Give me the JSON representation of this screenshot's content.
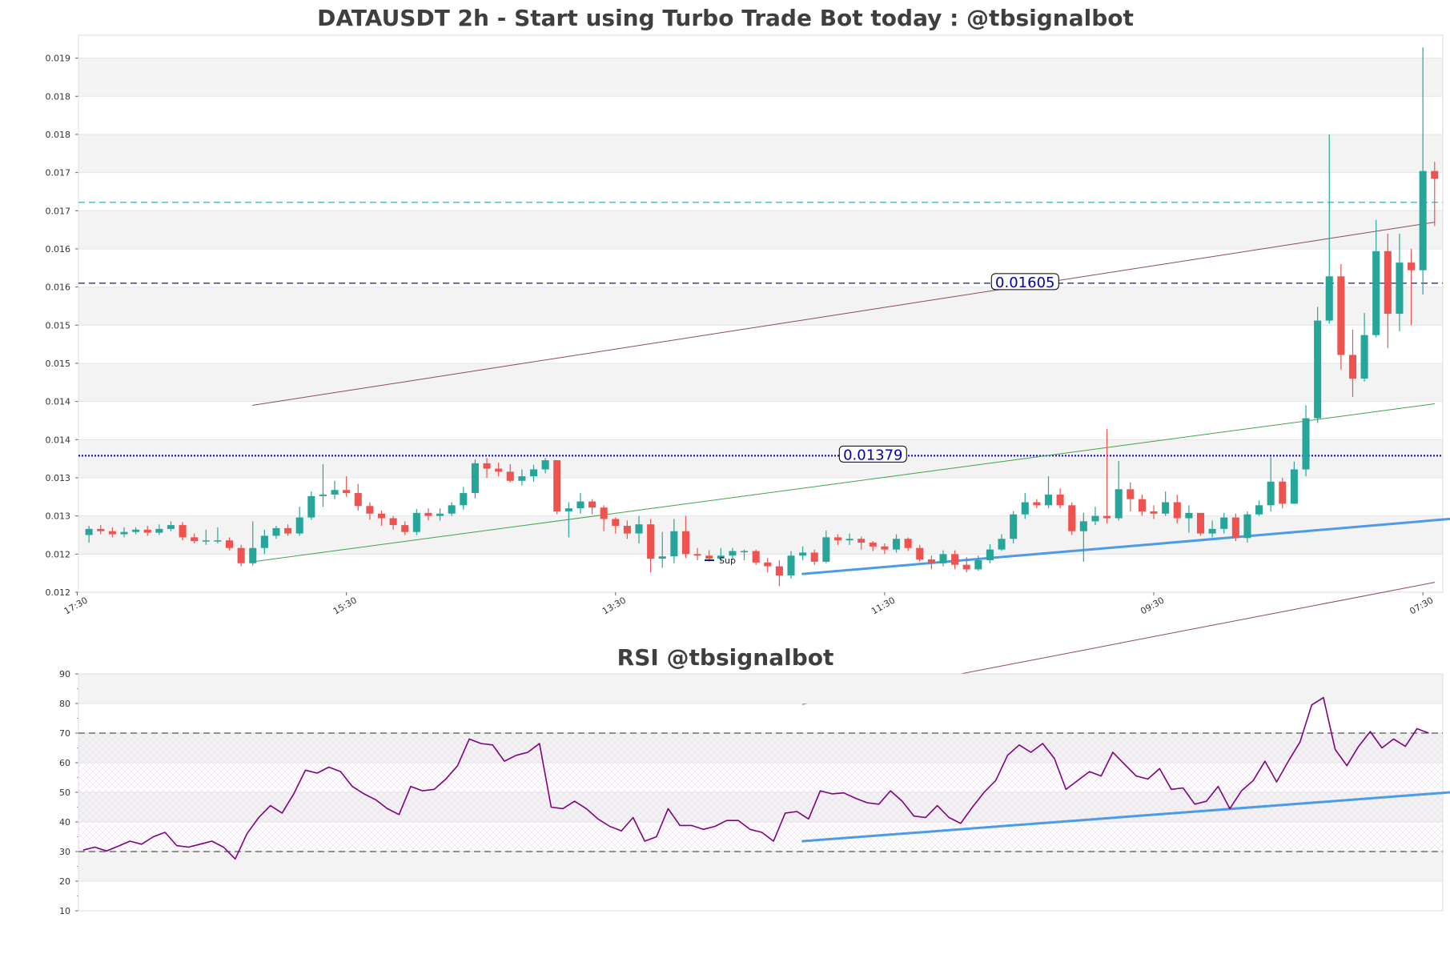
{
  "chart_data": [
    {
      "type": "candlestick",
      "title": "DATAUSDT 2h - Start using Turbo Trade Bot today : @tbsignalbot",
      "xlabel": "",
      "ylabel": "",
      "ylim": [
        0.012,
        0.0193
      ],
      "yticks": [
        {
          "value": 0.012,
          "label": "0.012"
        },
        {
          "value": 0.0125,
          "label": "0.012"
        },
        {
          "value": 0.013,
          "label": "0.013"
        },
        {
          "value": 0.0135,
          "label": "0.013"
        },
        {
          "value": 0.014,
          "label": "0.014"
        },
        {
          "value": 0.0145,
          "label": "0.014"
        },
        {
          "value": 0.015,
          "label": "0.015"
        },
        {
          "value": 0.0155,
          "label": "0.015"
        },
        {
          "value": 0.016,
          "label": "0.016"
        },
        {
          "value": 0.0165,
          "label": "0.016"
        },
        {
          "value": 0.017,
          "label": "0.017"
        },
        {
          "value": 0.0175,
          "label": "0.017"
        },
        {
          "value": 0.018,
          "label": "0.018"
        },
        {
          "value": 0.0185,
          "label": "0.018"
        },
        {
          "value": 0.019,
          "label": "0.019"
        }
      ],
      "xticks": [
        {
          "index": -1,
          "label": "17:30"
        },
        {
          "index": 22,
          "label": "15:30"
        },
        {
          "index": 45,
          "label": "13:30"
        },
        {
          "index": 68,
          "label": "11:30"
        },
        {
          "index": 91,
          "label": "09:30"
        },
        {
          "index": 114,
          "label": "07:30"
        }
      ],
      "candles": [
        [
          0.01275,
          0.01283,
          0.01287,
          0.01265
        ],
        [
          0.01283,
          0.0128,
          0.01288,
          0.01276
        ],
        [
          0.0128,
          0.01276,
          0.01285,
          0.01272
        ],
        [
          0.01276,
          0.01279,
          0.01285,
          0.01272
        ],
        [
          0.01279,
          0.01282,
          0.01285,
          0.01276
        ],
        [
          0.01282,
          0.01278,
          0.01287,
          0.01274
        ],
        [
          0.01278,
          0.01283,
          0.01289,
          0.01275
        ],
        [
          0.01283,
          0.01288,
          0.01293,
          0.0128
        ],
        [
          0.01288,
          0.01272,
          0.01292,
          0.01268
        ],
        [
          0.01272,
          0.01267,
          0.01277,
          0.01264
        ],
        [
          0.01267,
          0.01268,
          0.01282,
          0.01262
        ],
        [
          0.01268,
          0.01268,
          0.01285,
          0.01264
        ],
        [
          0.01268,
          0.01258,
          0.01272,
          0.01255
        ],
        [
          0.01258,
          0.01238,
          0.01262,
          0.01234
        ],
        [
          0.01238,
          0.01258,
          0.01293,
          0.01235
        ],
        [
          0.01258,
          0.01274,
          0.01282,
          0.0125
        ],
        [
          0.01274,
          0.01284,
          0.01287,
          0.0127
        ],
        [
          0.01284,
          0.01277,
          0.01289,
          0.01274
        ],
        [
          0.01277,
          0.01298,
          0.01312,
          0.01274
        ],
        [
          0.01298,
          0.01326,
          0.01332,
          0.01295
        ],
        [
          0.01326,
          0.01328,
          0.01368,
          0.01312
        ],
        [
          0.01328,
          0.01334,
          0.01346,
          0.01322
        ],
        [
          0.01334,
          0.0133,
          0.01352,
          0.01325
        ],
        [
          0.0133,
          0.01313,
          0.01342,
          0.01307
        ],
        [
          0.01313,
          0.01303,
          0.01318,
          0.01295
        ],
        [
          0.01303,
          0.01297,
          0.01307,
          0.01287
        ],
        [
          0.01297,
          0.01288,
          0.013,
          0.01282
        ],
        [
          0.01288,
          0.01279,
          0.01293,
          0.01275
        ],
        [
          0.01279,
          0.01304,
          0.01309,
          0.01275
        ],
        [
          0.01304,
          0.013,
          0.0131,
          0.01294
        ],
        [
          0.013,
          0.01303,
          0.0131,
          0.01294
        ],
        [
          0.01303,
          0.01314,
          0.01318,
          0.013
        ],
        [
          0.01314,
          0.0133,
          0.01338,
          0.01308
        ],
        [
          0.0133,
          0.01369,
          0.01374,
          0.01323
        ],
        [
          0.01369,
          0.01362,
          0.01376,
          0.0135
        ],
        [
          0.01362,
          0.01358,
          0.0137,
          0.01352
        ],
        [
          0.01358,
          0.01346,
          0.01368,
          0.01344
        ],
        [
          0.01346,
          0.01352,
          0.01361,
          0.0134
        ],
        [
          0.01352,
          0.01361,
          0.01367,
          0.01345
        ],
        [
          0.01361,
          0.01373,
          0.01376,
          0.01356
        ],
        [
          0.01373,
          0.01306,
          0.01372,
          0.01302
        ],
        [
          0.01306,
          0.0131,
          0.01318,
          0.01272
        ],
        [
          0.0131,
          0.01319,
          0.0133,
          0.01303
        ],
        [
          0.01319,
          0.01311,
          0.01322,
          0.01302
        ],
        [
          0.01311,
          0.01296,
          0.01314,
          0.0128
        ],
        [
          0.01296,
          0.01287,
          0.01298,
          0.01277
        ],
        [
          0.01287,
          0.01277,
          0.01294,
          0.0127
        ],
        [
          0.01277,
          0.01289,
          0.013,
          0.01264
        ],
        [
          0.01289,
          0.01244,
          0.01296,
          0.01226
        ],
        [
          0.01244,
          0.01247,
          0.01279,
          0.01232
        ],
        [
          0.01247,
          0.0128,
          0.01296,
          0.01238
        ],
        [
          0.0128,
          0.0125,
          0.013,
          0.01245
        ],
        [
          0.0125,
          0.01248,
          0.01258,
          0.01242
        ],
        [
          0.01248,
          0.01244,
          0.01255,
          0.0124
        ],
        [
          0.01244,
          0.01248,
          0.01258,
          0.0124
        ],
        [
          0.01248,
          0.01254,
          0.01258,
          0.01242
        ],
        [
          0.01254,
          0.01254,
          0.01256,
          0.01242
        ],
        [
          0.01254,
          0.01239,
          0.01256,
          0.01236
        ],
        [
          0.01239,
          0.01234,
          0.01245,
          0.01226
        ],
        [
          0.01234,
          0.01222,
          0.01242,
          0.01208
        ],
        [
          0.01222,
          0.01248,
          0.01254,
          0.01218
        ],
        [
          0.01248,
          0.01252,
          0.0126,
          0.01242
        ],
        [
          0.01252,
          0.0124,
          0.01256,
          0.01236
        ],
        [
          0.0124,
          0.01272,
          0.01281,
          0.01238
        ],
        [
          0.01272,
          0.01268,
          0.01276,
          0.01262
        ],
        [
          0.01268,
          0.0127,
          0.01277,
          0.01262
        ],
        [
          0.0127,
          0.01265,
          0.01273,
          0.01256
        ],
        [
          0.01265,
          0.0126,
          0.01267,
          0.01254
        ],
        [
          0.0126,
          0.01256,
          0.01264,
          0.0125
        ],
        [
          0.01256,
          0.0127,
          0.01276,
          0.01252
        ],
        [
          0.0127,
          0.01258,
          0.01272,
          0.01254
        ],
        [
          0.01258,
          0.01243,
          0.01262,
          0.0124
        ],
        [
          0.01243,
          0.01238,
          0.01248,
          0.0123
        ],
        [
          0.01238,
          0.0125,
          0.01255,
          0.01234
        ],
        [
          0.0125,
          0.01236,
          0.01255,
          0.0123
        ],
        [
          0.01236,
          0.0123,
          0.01246,
          0.01226
        ],
        [
          0.0123,
          0.01242,
          0.01248,
          0.01228
        ],
        [
          0.01242,
          0.01256,
          0.01263,
          0.01238
        ],
        [
          0.01256,
          0.0127,
          0.01276,
          0.01254
        ],
        [
          0.0127,
          0.01302,
          0.01306,
          0.01264
        ],
        [
          0.01302,
          0.01318,
          0.0133,
          0.01296
        ],
        [
          0.01318,
          0.01314,
          0.01322,
          0.0131
        ],
        [
          0.01314,
          0.01328,
          0.01352,
          0.0131
        ],
        [
          0.01328,
          0.01314,
          0.01336,
          0.0131
        ],
        [
          0.01314,
          0.0128,
          0.01318,
          0.01275
        ],
        [
          0.0128,
          0.01293,
          0.01304,
          0.0124
        ],
        [
          0.01293,
          0.013,
          0.01312,
          0.01288
        ],
        [
          0.013,
          0.01297,
          0.01414,
          0.0129
        ],
        [
          0.01297,
          0.01335,
          0.01372,
          0.01294
        ],
        [
          0.01335,
          0.01322,
          0.01344,
          0.01306
        ],
        [
          0.01322,
          0.01306,
          0.01328,
          0.013
        ],
        [
          0.01306,
          0.01303,
          0.01314,
          0.01296
        ],
        [
          0.01303,
          0.01318,
          0.01332,
          0.013
        ],
        [
          0.01318,
          0.01297,
          0.01328,
          0.0129
        ],
        [
          0.01297,
          0.01304,
          0.01314,
          0.01278
        ],
        [
          0.01304,
          0.01277,
          0.01303,
          0.01274
        ],
        [
          0.01277,
          0.01283,
          0.01294,
          0.01272
        ],
        [
          0.01283,
          0.01298,
          0.01304,
          0.01277
        ],
        [
          0.01298,
          0.01271,
          0.01303,
          0.01267
        ],
        [
          0.01271,
          0.01302,
          0.01306,
          0.01265
        ],
        [
          0.01302,
          0.01314,
          0.0132,
          0.013
        ],
        [
          0.01314,
          0.01345,
          0.01377,
          0.01306
        ],
        [
          0.01345,
          0.01316,
          0.0135,
          0.0131
        ],
        [
          0.01316,
          0.01361,
          0.01371,
          0.01316
        ],
        [
          0.01361,
          0.01428,
          0.01445,
          0.01352
        ],
        [
          0.01428,
          0.01556,
          0.01574,
          0.01422
        ],
        [
          0.01556,
          0.01614,
          0.018,
          0.01552
        ],
        [
          0.01614,
          0.01511,
          0.0163,
          0.01492
        ],
        [
          0.01511,
          0.0148,
          0.01544,
          0.01456
        ],
        [
          0.0148,
          0.01537,
          0.01566,
          0.01476
        ],
        [
          0.01537,
          0.01647,
          0.01688,
          0.01534
        ],
        [
          0.01647,
          0.01565,
          0.0167,
          0.0152
        ],
        [
          0.01565,
          0.01632,
          0.0167,
          0.01542
        ],
        [
          0.01632,
          0.01622,
          0.0165,
          0.0155
        ],
        [
          0.01622,
          0.01752,
          0.01914,
          0.0159
        ],
        [
          0.01752,
          0.01742,
          0.01764,
          0.0168
        ]
      ],
      "levels": [
        {
          "value": 0.01605,
          "label": "0.01605",
          "style": "dashed",
          "color": "#1a1a80"
        },
        {
          "value": 0.01379,
          "label": "0.01379",
          "style": "dotted",
          "color": "#0000cc"
        },
        {
          "value": 0.01711,
          "label": "",
          "style": "dashed",
          "color": "#45b3c9"
        }
      ],
      "trendlines": [
        {
          "from": [
            14,
            0.01445
          ],
          "to": [
            115,
            0.01685
          ],
          "color": "#8c4a5a",
          "width": 1
        },
        {
          "from": [
            14,
            0.0124
          ],
          "to": [
            115,
            0.01447
          ],
          "color": "#3fa34d",
          "width": 1
        },
        {
          "from": [
            61,
            0.01053
          ],
          "to": [
            115,
            0.01213
          ],
          "color": "#8c4a5a",
          "width": 1
        },
        {
          "from": [
            61,
            0.01224
          ],
          "to": [
            117,
            0.01297
          ],
          "color": "#4b9be6",
          "width": 3
        }
      ],
      "legend": {
        "label": "Sup",
        "color": "#1a1a80",
        "position": "bottom-center"
      },
      "colors": {
        "up": "#26a69a",
        "down": "#ef5350"
      }
    },
    {
      "type": "line",
      "title": "RSI @tbsignalbot",
      "xlabel": "",
      "ylabel": "",
      "ylim": [
        10,
        90
      ],
      "yticks": [
        10,
        20,
        30,
        40,
        50,
        60,
        70,
        80,
        90
      ],
      "series": [
        {
          "color": "#800080",
          "values": [
            30.5,
            31.5,
            30.2,
            31.8,
            33.5,
            32.5,
            35,
            36.5,
            32,
            31.5,
            32.5,
            33.5,
            31.5,
            27.5,
            36,
            41.5,
            45.5,
            43,
            49.5,
            57.5,
            56.5,
            58.5,
            57,
            52,
            49.5,
            47.5,
            44.5,
            42.5,
            52,
            50.5,
            51,
            54.5,
            59,
            68,
            66.5,
            66,
            60.5,
            62.5,
            63.5,
            66.5,
            45,
            44.5,
            47,
            44.5,
            41,
            38.5,
            37,
            41.5,
            33.5,
            35,
            44.5,
            38.8,
            38.8,
            37.5,
            38.5,
            40.5,
            40.5,
            37.5,
            36.5,
            33.5,
            43,
            43.5,
            41,
            50.5,
            49.5,
            49.8,
            48,
            46.5,
            46,
            50.5,
            47,
            42,
            41.5,
            45.5,
            41.5,
            39.5,
            45,
            50,
            54,
            62.5,
            66,
            63.5,
            66.5,
            61.5,
            51,
            54,
            57,
            55.5,
            63.5,
            59.5,
            55.5,
            54.5,
            58,
            51,
            51.5,
            46,
            47,
            52,
            44.5,
            50.5,
            54,
            60.5,
            53.5,
            60.5,
            67,
            79.5,
            82,
            64.5,
            59,
            65.5,
            70.5,
            65,
            68,
            65.5,
            71.5,
            70
          ]
        }
      ],
      "overbought": 70,
      "oversold": 30,
      "trendline": {
        "from": [
          61,
          33.5
        ],
        "to": [
          117,
          50.2
        ],
        "color": "#4b9be6",
        "width": 3
      }
    }
  ]
}
